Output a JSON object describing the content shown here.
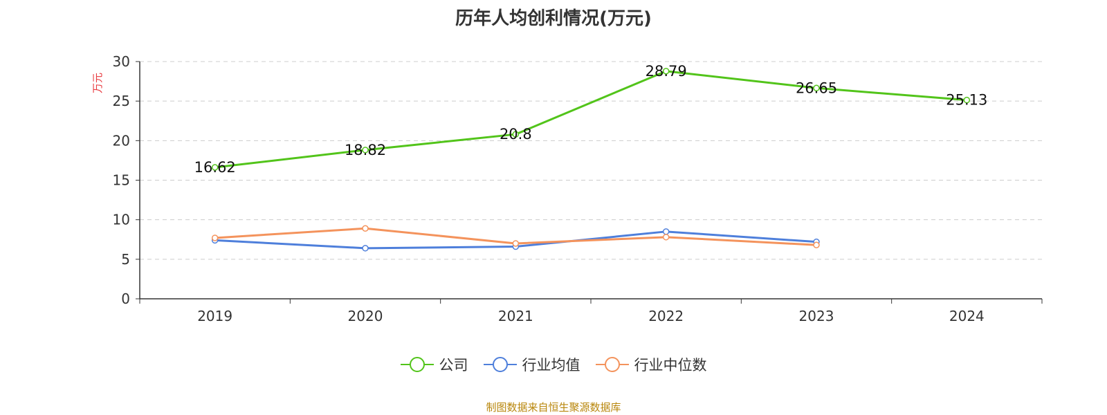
{
  "chart_data": {
    "type": "line",
    "title": "历年人均创利情况(万元)",
    "ylabel": "万元",
    "categories": [
      "2019",
      "2020",
      "2021",
      "2022",
      "2023",
      "2024"
    ],
    "ylim": [
      0,
      30
    ],
    "yticks": [
      "0",
      "5",
      "10",
      "15",
      "20",
      "25",
      "30"
    ],
    "grid": true,
    "legend_position": "bottom",
    "series": [
      {
        "name": "公司",
        "color": "#52c41a",
        "values": [
          16.62,
          18.82,
          20.8,
          28.79,
          26.65,
          25.13
        ],
        "labels": [
          "16.62",
          "18.82",
          "20.8",
          "28.79",
          "26.65",
          "25.13"
        ]
      },
      {
        "name": "行业均值",
        "color": "#4e7fdb",
        "values": [
          7.4,
          6.4,
          6.6,
          8.5,
          7.2,
          null
        ]
      },
      {
        "name": "行业中位数",
        "color": "#f4935c",
        "values": [
          7.7,
          8.9,
          7.0,
          7.8,
          6.8,
          null
        ]
      }
    ]
  },
  "footer": {
    "source": "制图数据来自恒生聚源数据库"
  }
}
